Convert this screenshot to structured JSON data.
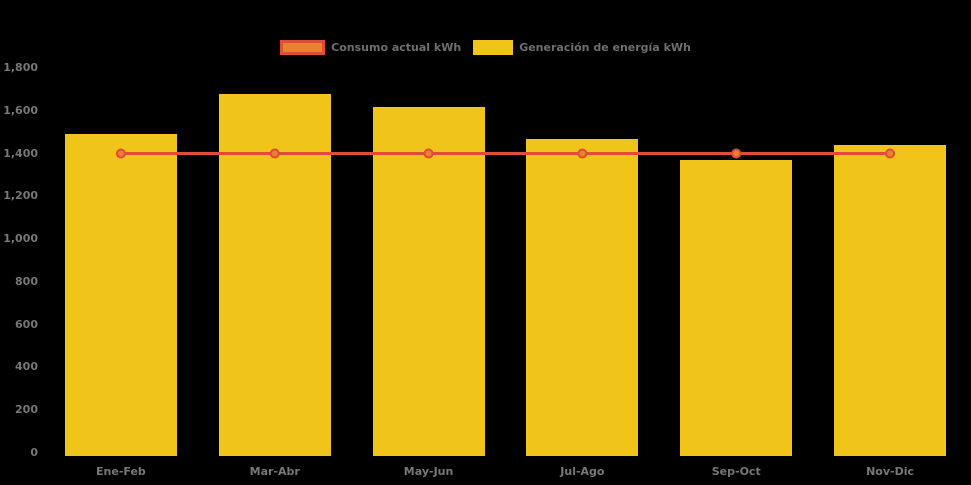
{
  "chart_data": {
    "type": "bar",
    "subtype": "bar-line-combo",
    "title": "",
    "xlabel": "",
    "ylabel": "",
    "categories": [
      "Ene-Feb",
      "Mar-Abr",
      "May-Jun",
      "Jul-Ago",
      "Sep-Oct",
      "Nov-Dic"
    ],
    "series": [
      {
        "name": "Consumo actual kWh",
        "type": "line",
        "color": "#e04b3a",
        "marker_fill": "#e8822d",
        "values": [
          1400,
          1400,
          1400,
          1400,
          1400,
          1400
        ]
      },
      {
        "name": "Generación de energía kWh",
        "type": "bar",
        "color": "#f0c419",
        "values": [
          1490,
          1680,
          1620,
          1470,
          1370,
          1440
        ]
      }
    ],
    "ylim": [
      0,
      1800
    ],
    "yticks": [
      {
        "value": 0,
        "label": "0"
      },
      {
        "value": 200,
        "label": "200"
      },
      {
        "value": 400,
        "label": "400"
      },
      {
        "value": 600,
        "label": "600"
      },
      {
        "value": 800,
        "label": "800"
      },
      {
        "value": 1000,
        "label": "1,000"
      },
      {
        "value": 1200,
        "label": "1,200"
      },
      {
        "value": 1400,
        "label": "1,400"
      },
      {
        "value": 1600,
        "label": "1,600"
      },
      {
        "value": 1800,
        "label": "1,800"
      }
    ],
    "grid": false,
    "legend_position": "top-center",
    "colors": {
      "background": "#000000",
      "axis_text": "#777777",
      "legend_text": "#6e6e6e",
      "bar": "#f0c419",
      "line": "#e04b3a",
      "marker": "#e8822d"
    }
  }
}
